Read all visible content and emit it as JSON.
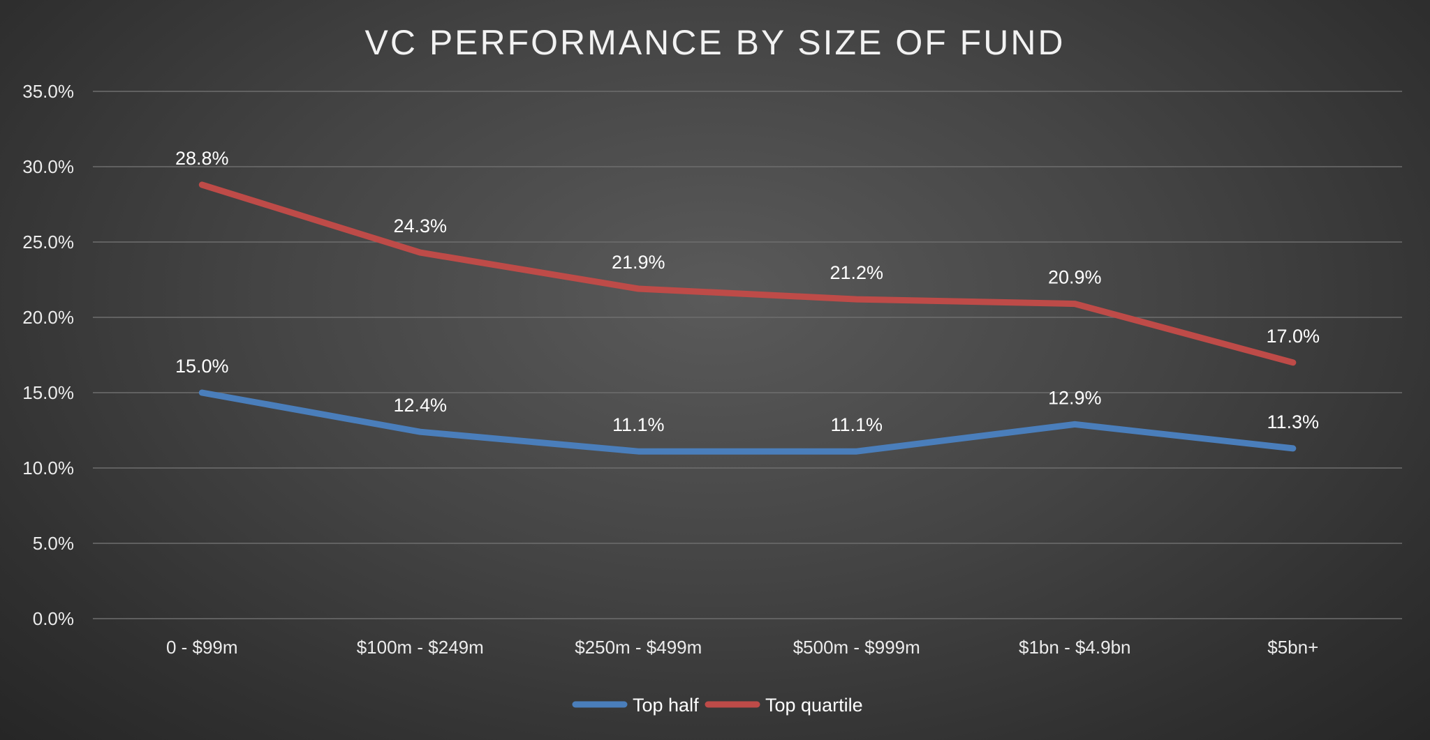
{
  "chart_data": {
    "type": "line",
    "title": "VC PERFORMANCE BY SIZE OF FUND",
    "xlabel": "",
    "ylabel": "",
    "categories": [
      "0 - $99m",
      "$100m - $249m",
      "$250m - $499m",
      "$500m - $999m",
      "$1bn - $4.9bn",
      "$5bn+"
    ],
    "ylim": [
      0,
      35
    ],
    "yticks": [
      0,
      5,
      10,
      15,
      20,
      25,
      30,
      35
    ],
    "ytick_labels": [
      "0.0%",
      "5.0%",
      "10.0%",
      "15.0%",
      "20.0%",
      "25.0%",
      "30.0%",
      "35.0%"
    ],
    "grid": true,
    "legend_position": "bottom",
    "series": [
      {
        "name": "Top half",
        "color": "#4a7ebb",
        "values": [
          15.0,
          12.4,
          11.1,
          11.1,
          12.9,
          11.3
        ],
        "labels": [
          "15.0%",
          "12.4%",
          "11.1%",
          "11.1%",
          "12.9%",
          "11.3%"
        ]
      },
      {
        "name": "Top quartile",
        "color": "#be4b48",
        "values": [
          28.8,
          24.3,
          21.9,
          21.2,
          20.9,
          17.0
        ],
        "labels": [
          "28.8%",
          "24.3%",
          "21.9%",
          "21.2%",
          "20.9%",
          "17.0%"
        ]
      }
    ]
  }
}
